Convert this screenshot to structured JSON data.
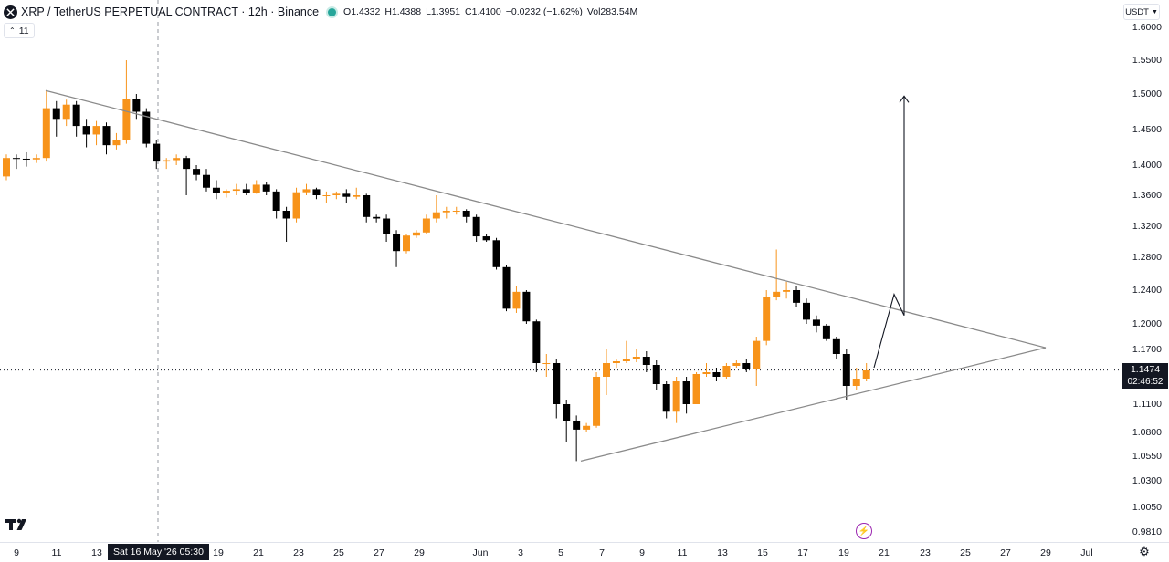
{
  "header": {
    "symbol_title": "XRP / TetherUS PERPETUAL CONTRACT · 12h · Binance",
    "ohlc": [
      {
        "key": "O",
        "value": "1.4332"
      },
      {
        "key": "H",
        "value": "1.4388"
      },
      {
        "key": "L",
        "value": "1.3951"
      },
      {
        "key": "C",
        "value": "1.4100"
      },
      {
        "key": "",
        "value": "−0.0232 (−1.62%)"
      },
      {
        "key": "Vol",
        "value": "283.54M"
      }
    ]
  },
  "indicator_pill": {
    "label": "11"
  },
  "currency": {
    "label": "USDT"
  },
  "last_price": {
    "value": "1.1474",
    "countdown": "02:46:52"
  },
  "crosshair_date": "Sat 16 May '26   05:30",
  "colors": {
    "up": "#f7931a",
    "down": "#000000",
    "trendline": "#8a8a8a",
    "arrow": "#131722"
  },
  "icons": {
    "logo": "tradingview-logo-icon",
    "bolt": "lightning-bolt-icon",
    "settings": "gear-icon"
  },
  "chart_data": {
    "type": "candlestick",
    "y_ticks": [
      "1.6000",
      "1.5500",
      "1.5000",
      "1.4500",
      "1.4000",
      "1.3600",
      "1.3200",
      "1.2800",
      "1.2400",
      "1.2000",
      "1.1700",
      "1.1100",
      "1.0800",
      "1.0550",
      "1.0300",
      "1.0050",
      "0.9810"
    ],
    "x_ticks": [
      "9",
      "11",
      "13",
      "19",
      "21",
      "23",
      "25",
      "27",
      "29",
      "Jun",
      "3",
      "5",
      "7",
      "9",
      "11",
      "13",
      "15",
      "17",
      "19",
      "21",
      "23",
      "25",
      "27",
      "29",
      "Jul"
    ],
    "ylim": [
      0.981,
      1.6
    ],
    "candles": [
      {
        "o": 1.385,
        "h": 1.415,
        "l": 1.38,
        "c": 1.41
      },
      {
        "o": 1.41,
        "h": 1.415,
        "l": 1.395,
        "c": 1.409
      },
      {
        "o": 1.409,
        "h": 1.418,
        "l": 1.398,
        "c": 1.408
      },
      {
        "o": 1.408,
        "h": 1.415,
        "l": 1.403,
        "c": 1.41
      },
      {
        "o": 1.41,
        "h": 1.505,
        "l": 1.405,
        "c": 1.48
      },
      {
        "o": 1.48,
        "h": 1.49,
        "l": 1.44,
        "c": 1.465
      },
      {
        "o": 1.465,
        "h": 1.492,
        "l": 1.455,
        "c": 1.485
      },
      {
        "o": 1.485,
        "h": 1.49,
        "l": 1.44,
        "c": 1.455
      },
      {
        "o": 1.455,
        "h": 1.465,
        "l": 1.425,
        "c": 1.443
      },
      {
        "o": 1.443,
        "h": 1.462,
        "l": 1.428,
        "c": 1.455
      },
      {
        "o": 1.455,
        "h": 1.46,
        "l": 1.415,
        "c": 1.428
      },
      {
        "o": 1.428,
        "h": 1.445,
        "l": 1.422,
        "c": 1.435
      },
      {
        "o": 1.435,
        "h": 1.55,
        "l": 1.43,
        "c": 1.493
      },
      {
        "o": 1.493,
        "h": 1.5,
        "l": 1.465,
        "c": 1.475
      },
      {
        "o": 1.475,
        "h": 1.48,
        "l": 1.425,
        "c": 1.43
      },
      {
        "o": 1.43,
        "h": 1.435,
        "l": 1.395,
        "c": 1.405
      },
      {
        "o": 1.405,
        "h": 1.41,
        "l": 1.395,
        "c": 1.407
      },
      {
        "o": 1.407,
        "h": 1.415,
        "l": 1.4,
        "c": 1.41
      },
      {
        "o": 1.41,
        "h": 1.413,
        "l": 1.36,
        "c": 1.395
      },
      {
        "o": 1.395,
        "h": 1.4,
        "l": 1.38,
        "c": 1.387
      },
      {
        "o": 1.387,
        "h": 1.395,
        "l": 1.365,
        "c": 1.37
      },
      {
        "o": 1.37,
        "h": 1.38,
        "l": 1.355,
        "c": 1.363
      },
      {
        "o": 1.363,
        "h": 1.368,
        "l": 1.357,
        "c": 1.366
      },
      {
        "o": 1.366,
        "h": 1.375,
        "l": 1.36,
        "c": 1.368
      },
      {
        "o": 1.368,
        "h": 1.375,
        "l": 1.36,
        "c": 1.363
      },
      {
        "o": 1.363,
        "h": 1.38,
        "l": 1.362,
        "c": 1.374
      },
      {
        "o": 1.374,
        "h": 1.378,
        "l": 1.36,
        "c": 1.365
      },
      {
        "o": 1.365,
        "h": 1.368,
        "l": 1.33,
        "c": 1.34
      },
      {
        "o": 1.34,
        "h": 1.345,
        "l": 1.3,
        "c": 1.33
      },
      {
        "o": 1.33,
        "h": 1.37,
        "l": 1.325,
        "c": 1.364
      },
      {
        "o": 1.364,
        "h": 1.375,
        "l": 1.36,
        "c": 1.368
      },
      {
        "o": 1.368,
        "h": 1.37,
        "l": 1.355,
        "c": 1.36
      },
      {
        "o": 1.36,
        "h": 1.365,
        "l": 1.35,
        "c": 1.36
      },
      {
        "o": 1.36,
        "h": 1.365,
        "l": 1.355,
        "c": 1.362
      },
      {
        "o": 1.362,
        "h": 1.368,
        "l": 1.35,
        "c": 1.358
      },
      {
        "o": 1.358,
        "h": 1.37,
        "l": 1.355,
        "c": 1.36
      },
      {
        "o": 1.36,
        "h": 1.362,
        "l": 1.325,
        "c": 1.332
      },
      {
        "o": 1.332,
        "h": 1.335,
        "l": 1.325,
        "c": 1.33
      },
      {
        "o": 1.33,
        "h": 1.335,
        "l": 1.3,
        "c": 1.31
      },
      {
        "o": 1.31,
        "h": 1.315,
        "l": 1.268,
        "c": 1.288
      },
      {
        "o": 1.288,
        "h": 1.31,
        "l": 1.285,
        "c": 1.308
      },
      {
        "o": 1.308,
        "h": 1.315,
        "l": 1.305,
        "c": 1.312
      },
      {
        "o": 1.312,
        "h": 1.335,
        "l": 1.31,
        "c": 1.33
      },
      {
        "o": 1.33,
        "h": 1.36,
        "l": 1.325,
        "c": 1.338
      },
      {
        "o": 1.338,
        "h": 1.345,
        "l": 1.33,
        "c": 1.34
      },
      {
        "o": 1.34,
        "h": 1.345,
        "l": 1.335,
        "c": 1.34
      },
      {
        "o": 1.34,
        "h": 1.342,
        "l": 1.325,
        "c": 1.332
      },
      {
        "o": 1.332,
        "h": 1.335,
        "l": 1.3,
        "c": 1.307
      },
      {
        "o": 1.307,
        "h": 1.31,
        "l": 1.3,
        "c": 1.302
      },
      {
        "o": 1.302,
        "h": 1.305,
        "l": 1.265,
        "c": 1.268
      },
      {
        "o": 1.268,
        "h": 1.27,
        "l": 1.215,
        "c": 1.218
      },
      {
        "o": 1.218,
        "h": 1.245,
        "l": 1.213,
        "c": 1.238
      },
      {
        "o": 1.238,
        "h": 1.24,
        "l": 1.2,
        "c": 1.203
      },
      {
        "o": 1.203,
        "h": 1.205,
        "l": 1.145,
        "c": 1.155
      },
      {
        "o": 1.155,
        "h": 1.165,
        "l": 1.14,
        "c": 1.155
      },
      {
        "o": 1.155,
        "h": 1.16,
        "l": 1.095,
        "c": 1.11
      },
      {
        "o": 1.11,
        "h": 1.115,
        "l": 1.07,
        "c": 1.092
      },
      {
        "o": 1.092,
        "h": 1.098,
        "l": 1.05,
        "c": 1.083
      },
      {
        "o": 1.083,
        "h": 1.09,
        "l": 1.08,
        "c": 1.087
      },
      {
        "o": 1.087,
        "h": 1.145,
        "l": 1.085,
        "c": 1.14
      },
      {
        "o": 1.14,
        "h": 1.17,
        "l": 1.12,
        "c": 1.155
      },
      {
        "o": 1.155,
        "h": 1.16,
        "l": 1.15,
        "c": 1.157
      },
      {
        "o": 1.157,
        "h": 1.18,
        "l": 1.155,
        "c": 1.16
      },
      {
        "o": 1.16,
        "h": 1.17,
        "l": 1.156,
        "c": 1.162
      },
      {
        "o": 1.162,
        "h": 1.168,
        "l": 1.145,
        "c": 1.153
      },
      {
        "o": 1.153,
        "h": 1.158,
        "l": 1.125,
        "c": 1.132
      },
      {
        "o": 1.132,
        "h": 1.135,
        "l": 1.095,
        "c": 1.102
      },
      {
        "o": 1.102,
        "h": 1.14,
        "l": 1.09,
        "c": 1.135
      },
      {
        "o": 1.135,
        "h": 1.14,
        "l": 1.1,
        "c": 1.11
      },
      {
        "o": 1.11,
        "h": 1.145,
        "l": 1.11,
        "c": 1.143
      },
      {
        "o": 1.143,
        "h": 1.155,
        "l": 1.14,
        "c": 1.145
      },
      {
        "o": 1.145,
        "h": 1.15,
        "l": 1.135,
        "c": 1.14
      },
      {
        "o": 1.14,
        "h": 1.155,
        "l": 1.138,
        "c": 1.152
      },
      {
        "o": 1.152,
        "h": 1.158,
        "l": 1.15,
        "c": 1.155
      },
      {
        "o": 1.155,
        "h": 1.16,
        "l": 1.145,
        "c": 1.148
      },
      {
        "o": 1.148,
        "h": 1.185,
        "l": 1.13,
        "c": 1.18
      },
      {
        "o": 1.18,
        "h": 1.24,
        "l": 1.175,
        "c": 1.232
      },
      {
        "o": 1.232,
        "h": 1.29,
        "l": 1.228,
        "c": 1.238
      },
      {
        "o": 1.238,
        "h": 1.25,
        "l": 1.23,
        "c": 1.24
      },
      {
        "o": 1.24,
        "h": 1.245,
        "l": 1.22,
        "c": 1.225
      },
      {
        "o": 1.225,
        "h": 1.23,
        "l": 1.2,
        "c": 1.205
      },
      {
        "o": 1.205,
        "h": 1.21,
        "l": 1.19,
        "c": 1.198
      },
      {
        "o": 1.198,
        "h": 1.2,
        "l": 1.18,
        "c": 1.182
      },
      {
        "o": 1.182,
        "h": 1.185,
        "l": 1.16,
        "c": 1.165
      },
      {
        "o": 1.165,
        "h": 1.17,
        "l": 1.115,
        "c": 1.13
      },
      {
        "o": 1.13,
        "h": 1.15,
        "l": 1.125,
        "c": 1.138
      },
      {
        "o": 1.138,
        "h": 1.155,
        "l": 1.135,
        "c": 1.147
      }
    ]
  }
}
